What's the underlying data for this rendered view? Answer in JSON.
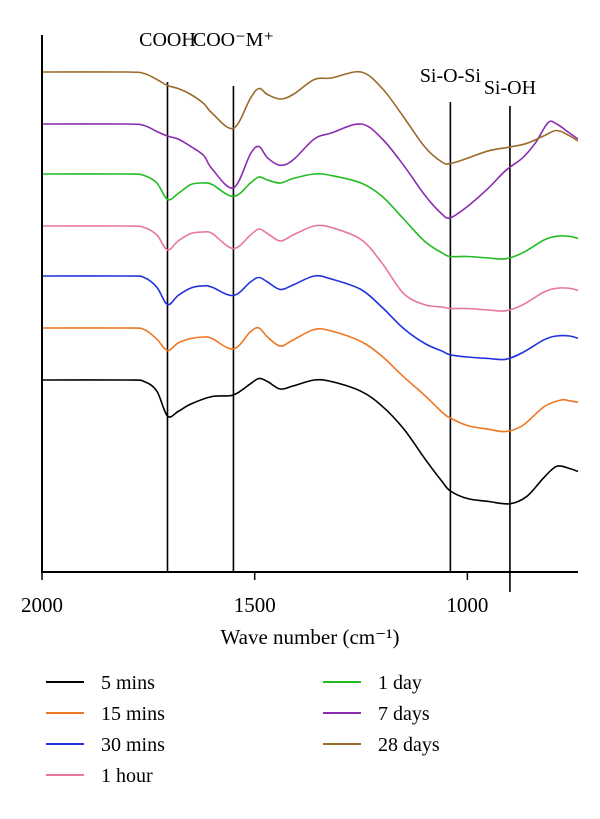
{
  "chart_data": {
    "type": "line",
    "title": "",
    "xlabel": "Wave number (cm⁻¹)",
    "ylabel": "",
    "x_reversed": true,
    "xlim": [
      2000,
      740
    ],
    "xticks": [
      2000,
      1500,
      1000
    ],
    "grid": false,
    "legend_position": "bottom",
    "markers": [
      {
        "label": "COOH",
        "x": 1705
      },
      {
        "label": "COO⁻M⁺",
        "x": 1550
      },
      {
        "label": "Si-O-Si",
        "x": 1040
      },
      {
        "label": "Si-OH",
        "x": 900
      }
    ],
    "series": [
      {
        "name": "5 mins",
        "color": "#000000",
        "points": [
          [
            2000,
            0.0
          ],
          [
            1800,
            0.0
          ],
          [
            1760,
            -0.02
          ],
          [
            1730,
            -0.15
          ],
          [
            1705,
            -0.48
          ],
          [
            1680,
            -0.42
          ],
          [
            1650,
            -0.32
          ],
          [
            1600,
            -0.22
          ],
          [
            1550,
            -0.2
          ],
          [
            1510,
            -0.05
          ],
          [
            1490,
            0.02
          ],
          [
            1470,
            -0.02
          ],
          [
            1440,
            -0.12
          ],
          [
            1410,
            -0.08
          ],
          [
            1360,
            0.0
          ],
          [
            1320,
            -0.02
          ],
          [
            1250,
            -0.15
          ],
          [
            1200,
            -0.35
          ],
          [
            1150,
            -0.65
          ],
          [
            1100,
            -1.05
          ],
          [
            1060,
            -1.35
          ],
          [
            1040,
            -1.48
          ],
          [
            1000,
            -1.58
          ],
          [
            950,
            -1.62
          ],
          [
            900,
            -1.65
          ],
          [
            860,
            -1.55
          ],
          [
            820,
            -1.3
          ],
          [
            790,
            -1.15
          ],
          [
            760,
            -1.18
          ],
          [
            740,
            -1.22
          ]
        ]
      },
      {
        "name": "15 mins",
        "color": "#ee7722",
        "points": [
          [
            2000,
            0.0
          ],
          [
            1800,
            0.0
          ],
          [
            1760,
            -0.02
          ],
          [
            1730,
            -0.15
          ],
          [
            1705,
            -0.3
          ],
          [
            1680,
            -0.2
          ],
          [
            1650,
            -0.14
          ],
          [
            1620,
            -0.12
          ],
          [
            1600,
            -0.14
          ],
          [
            1550,
            -0.28
          ],
          [
            1510,
            -0.05
          ],
          [
            1490,
            0.0
          ],
          [
            1470,
            -0.12
          ],
          [
            1440,
            -0.24
          ],
          [
            1410,
            -0.16
          ],
          [
            1360,
            -0.02
          ],
          [
            1320,
            -0.04
          ],
          [
            1250,
            -0.18
          ],
          [
            1200,
            -0.38
          ],
          [
            1150,
            -0.65
          ],
          [
            1100,
            -0.9
          ],
          [
            1060,
            -1.12
          ],
          [
            1040,
            -1.2
          ],
          [
            1000,
            -1.3
          ],
          [
            950,
            -1.35
          ],
          [
            910,
            -1.38
          ],
          [
            870,
            -1.3
          ],
          [
            820,
            -1.05
          ],
          [
            780,
            -0.96
          ],
          [
            760,
            -0.97
          ],
          [
            740,
            -0.99
          ]
        ]
      },
      {
        "name": "30 mins",
        "color": "#2233dd",
        "points": [
          [
            2000,
            0.0
          ],
          [
            1800,
            0.0
          ],
          [
            1760,
            -0.02
          ],
          [
            1730,
            -0.15
          ],
          [
            1705,
            -0.38
          ],
          [
            1680,
            -0.26
          ],
          [
            1650,
            -0.16
          ],
          [
            1620,
            -0.13
          ],
          [
            1600,
            -0.15
          ],
          [
            1550,
            -0.26
          ],
          [
            1510,
            -0.08
          ],
          [
            1490,
            -0.02
          ],
          [
            1470,
            -0.08
          ],
          [
            1440,
            -0.18
          ],
          [
            1410,
            -0.12
          ],
          [
            1360,
            0.0
          ],
          [
            1320,
            -0.04
          ],
          [
            1250,
            -0.18
          ],
          [
            1200,
            -0.42
          ],
          [
            1150,
            -0.7
          ],
          [
            1100,
            -0.9
          ],
          [
            1060,
            -1.0
          ],
          [
            1040,
            -1.05
          ],
          [
            1000,
            -1.08
          ],
          [
            950,
            -1.1
          ],
          [
            910,
            -1.11
          ],
          [
            870,
            -1.02
          ],
          [
            820,
            -0.85
          ],
          [
            790,
            -0.8
          ],
          [
            760,
            -0.8
          ],
          [
            740,
            -0.83
          ]
        ]
      },
      {
        "name": "1 hour",
        "color": "#e8789a",
        "points": [
          [
            2000,
            0.0
          ],
          [
            1800,
            0.0
          ],
          [
            1760,
            -0.02
          ],
          [
            1730,
            -0.12
          ],
          [
            1705,
            -0.32
          ],
          [
            1680,
            -0.2
          ],
          [
            1650,
            -0.1
          ],
          [
            1620,
            -0.08
          ],
          [
            1600,
            -0.1
          ],
          [
            1550,
            -0.3
          ],
          [
            1510,
            -0.12
          ],
          [
            1490,
            -0.04
          ],
          [
            1470,
            -0.1
          ],
          [
            1440,
            -0.2
          ],
          [
            1410,
            -0.12
          ],
          [
            1360,
            0.0
          ],
          [
            1320,
            -0.02
          ],
          [
            1250,
            -0.18
          ],
          [
            1200,
            -0.5
          ],
          [
            1150,
            -0.9
          ],
          [
            1100,
            -1.05
          ],
          [
            1060,
            -1.08
          ],
          [
            1040,
            -1.1
          ],
          [
            1000,
            -1.1
          ],
          [
            950,
            -1.12
          ],
          [
            910,
            -1.13
          ],
          [
            870,
            -1.05
          ],
          [
            820,
            -0.88
          ],
          [
            790,
            -0.83
          ],
          [
            760,
            -0.83
          ],
          [
            740,
            -0.86
          ]
        ]
      },
      {
        "name": "1 day",
        "color": "#22bb22",
        "points": [
          [
            2000,
            0.0
          ],
          [
            1800,
            0.0
          ],
          [
            1760,
            -0.02
          ],
          [
            1730,
            -0.12
          ],
          [
            1705,
            -0.34
          ],
          [
            1680,
            -0.26
          ],
          [
            1650,
            -0.14
          ],
          [
            1620,
            -0.12
          ],
          [
            1600,
            -0.14
          ],
          [
            1550,
            -0.3
          ],
          [
            1510,
            -0.12
          ],
          [
            1490,
            -0.04
          ],
          [
            1470,
            -0.08
          ],
          [
            1440,
            -0.12
          ],
          [
            1410,
            -0.06
          ],
          [
            1360,
            0.0
          ],
          [
            1320,
            -0.02
          ],
          [
            1250,
            -0.12
          ],
          [
            1200,
            -0.3
          ],
          [
            1150,
            -0.6
          ],
          [
            1100,
            -0.9
          ],
          [
            1060,
            -1.05
          ],
          [
            1040,
            -1.1
          ],
          [
            1000,
            -1.1
          ],
          [
            950,
            -1.12
          ],
          [
            910,
            -1.13
          ],
          [
            870,
            -1.05
          ],
          [
            820,
            -0.88
          ],
          [
            790,
            -0.83
          ],
          [
            760,
            -0.83
          ],
          [
            740,
            -0.86
          ]
        ]
      },
      {
        "name": "7 days",
        "color": "#8a2bb0",
        "points": [
          [
            2000,
            0.0
          ],
          [
            1800,
            0.0
          ],
          [
            1760,
            -0.02
          ],
          [
            1730,
            -0.1
          ],
          [
            1705,
            -0.16
          ],
          [
            1680,
            -0.2
          ],
          [
            1650,
            -0.3
          ],
          [
            1620,
            -0.42
          ],
          [
            1600,
            -0.6
          ],
          [
            1550,
            -0.85
          ],
          [
            1510,
            -0.4
          ],
          [
            1490,
            -0.3
          ],
          [
            1470,
            -0.45
          ],
          [
            1440,
            -0.55
          ],
          [
            1410,
            -0.48
          ],
          [
            1360,
            -0.2
          ],
          [
            1320,
            -0.12
          ],
          [
            1250,
            0.0
          ],
          [
            1200,
            -0.2
          ],
          [
            1150,
            -0.55
          ],
          [
            1100,
            -0.95
          ],
          [
            1060,
            -1.2
          ],
          [
            1040,
            -1.25
          ],
          [
            1000,
            -1.1
          ],
          [
            950,
            -0.85
          ],
          [
            910,
            -0.62
          ],
          [
            870,
            -0.45
          ],
          [
            840,
            -0.25
          ],
          [
            810,
            0.02
          ],
          [
            790,
            0.0
          ],
          [
            760,
            -0.12
          ],
          [
            740,
            -0.2
          ]
        ]
      },
      {
        "name": "28 days",
        "color": "#9a6a2a",
        "points": [
          [
            2000,
            0.0
          ],
          [
            1800,
            0.0
          ],
          [
            1760,
            -0.02
          ],
          [
            1730,
            -0.1
          ],
          [
            1705,
            -0.18
          ],
          [
            1680,
            -0.22
          ],
          [
            1650,
            -0.3
          ],
          [
            1620,
            -0.42
          ],
          [
            1600,
            -0.55
          ],
          [
            1550,
            -0.75
          ],
          [
            1510,
            -0.35
          ],
          [
            1490,
            -0.22
          ],
          [
            1470,
            -0.3
          ],
          [
            1440,
            -0.36
          ],
          [
            1410,
            -0.3
          ],
          [
            1360,
            -0.1
          ],
          [
            1320,
            -0.08
          ],
          [
            1250,
            0.0
          ],
          [
            1200,
            -0.22
          ],
          [
            1150,
            -0.6
          ],
          [
            1100,
            -1.0
          ],
          [
            1060,
            -1.2
          ],
          [
            1040,
            -1.22
          ],
          [
            1000,
            -1.15
          ],
          [
            950,
            -1.05
          ],
          [
            900,
            -1.0
          ],
          [
            860,
            -0.95
          ],
          [
            820,
            -0.85
          ],
          [
            790,
            -0.78
          ],
          [
            760,
            -0.85
          ],
          [
            740,
            -0.92
          ]
        ]
      }
    ]
  }
}
